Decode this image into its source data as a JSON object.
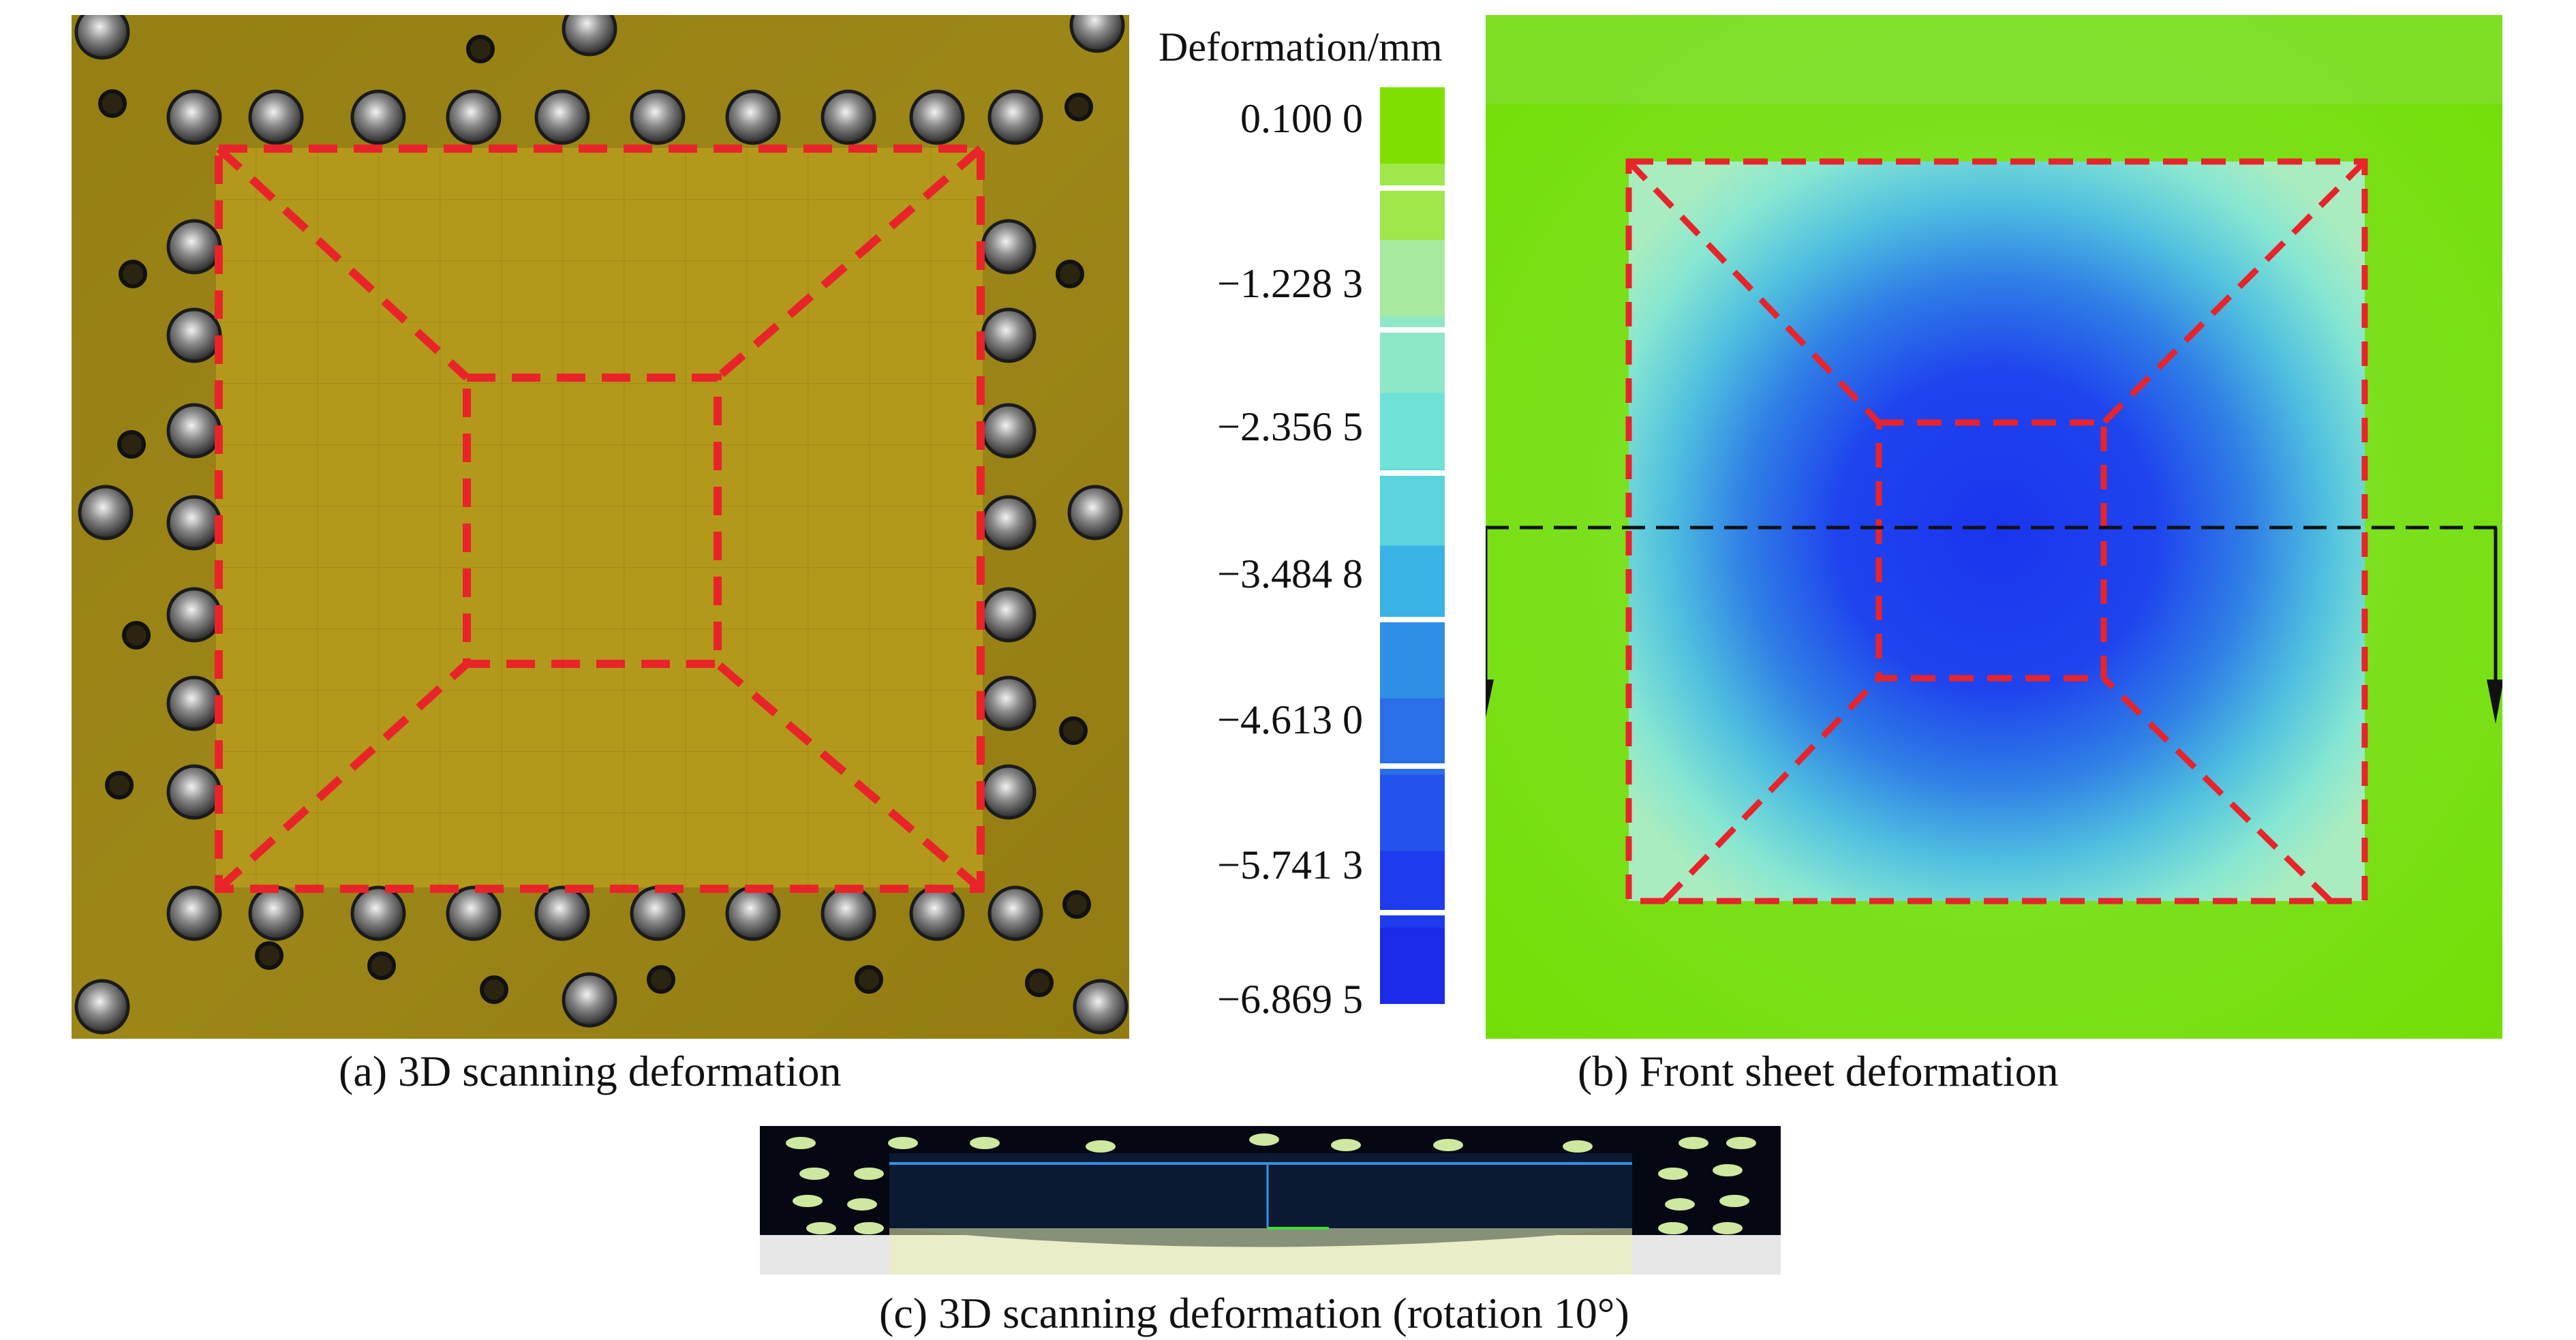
{
  "panels": {
    "a": {
      "caption": "(a) 3D scanning deformation"
    },
    "b": {
      "caption": "(b) Front sheet deformation"
    },
    "c": {
      "caption": "(c) 3D scanning deformation (rotation 10°)"
    }
  },
  "colorbar": {
    "title": "Deformation/mm",
    "labels": [
      "0.100 0",
      "−1.228 3",
      "−2.356 5",
      "−3.484 8",
      "−4.613 0",
      "−5.741 3",
      "−6.869 5"
    ],
    "colors": [
      "#7fe000",
      "#9fe74a",
      "#a6eaa0",
      "#8ee8c8",
      "#6fe2d8",
      "#5cd4e0",
      "#3ab2e6",
      "#2f8fe4",
      "#2a6ee8",
      "#2452ec",
      "#1e3cee",
      "#1a2bea"
    ]
  },
  "colors": {
    "dashed_outline": "#e8242a",
    "section_line": "#111111",
    "photo_plate": "#b79b18",
    "fem_background": "#74e20a",
    "fem_center": "#1e3cf0"
  }
}
